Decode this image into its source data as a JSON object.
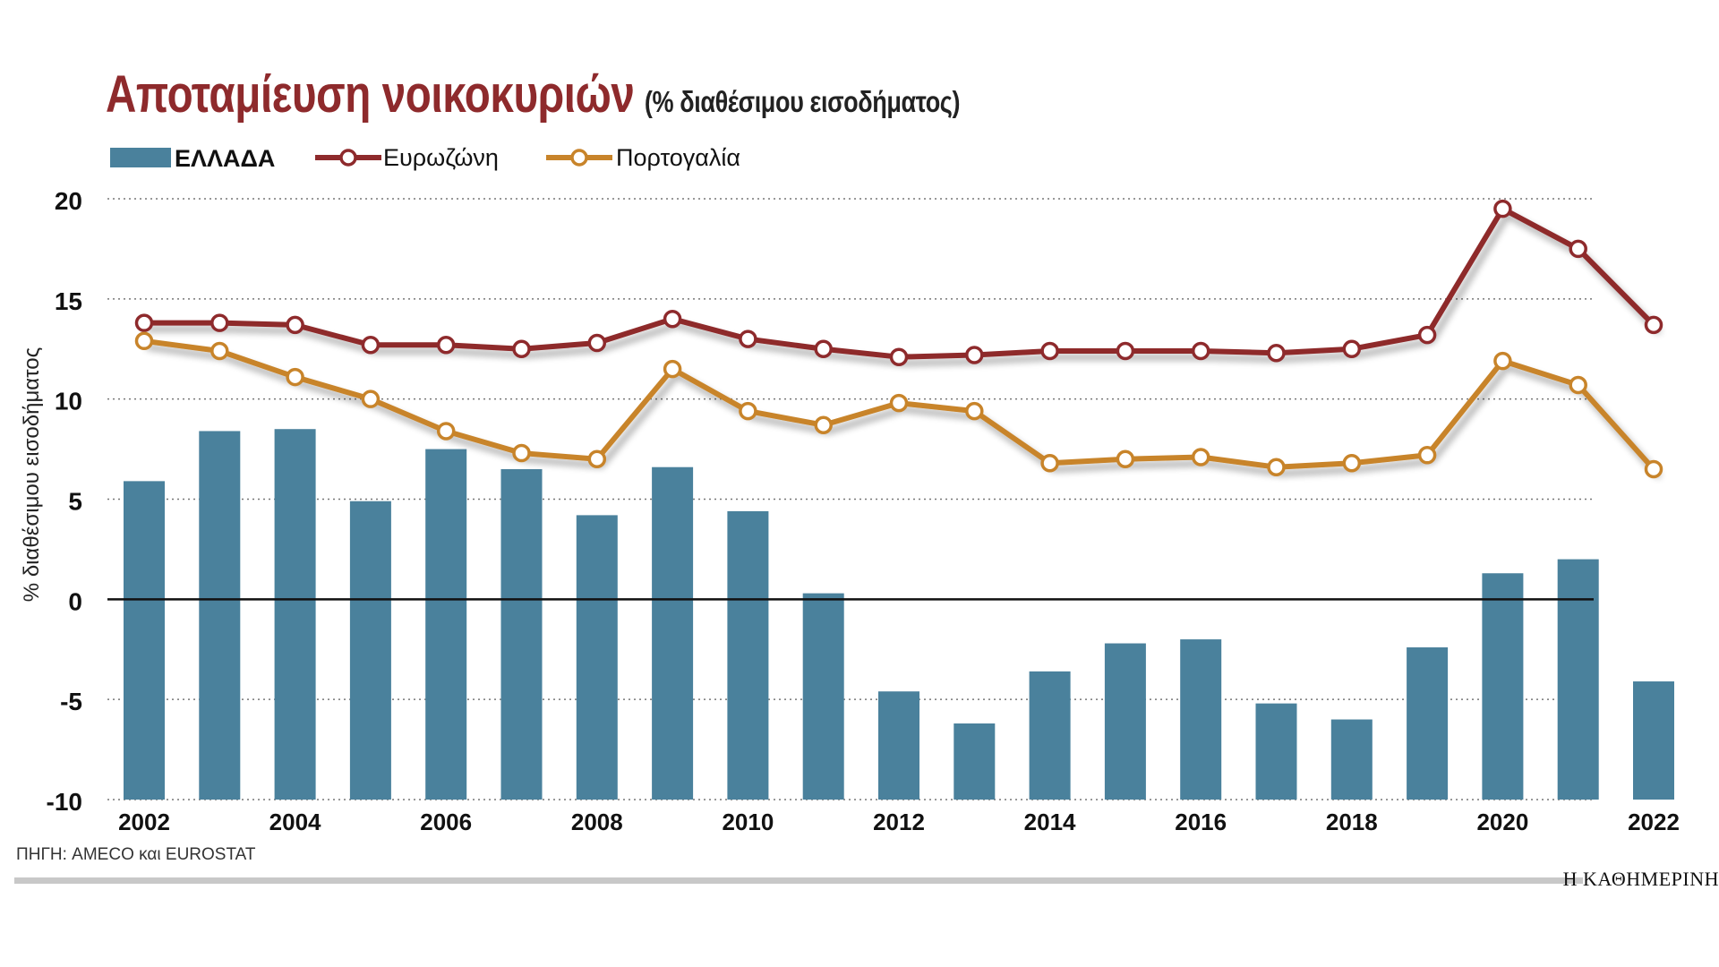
{
  "title": "Αποταμίευση νοικοκυριών",
  "subtitle": "(% διαθέσιμου εισοδήματος)",
  "source": "ΠΗΓΗ: AMECO και EUROSTAT",
  "publisher": "Η ΚΑΘΗΜΕΡΙΝΗ",
  "colors": {
    "bars": "#4a819c",
    "eurozone": "#8e2a2c",
    "portugal": "#c8842a",
    "title": "#8e2a2c"
  },
  "chart_data": {
    "type": "bar",
    "title": "Αποταμίευση νοικοκυριών",
    "ylabel": "% διαθέσιμου εισοδήματος",
    "xlabel": "",
    "ylim": [
      -10,
      20
    ],
    "yticks": [
      "20",
      "15",
      "10",
      "5",
      "0",
      "-5",
      "-10"
    ],
    "x": [
      2002,
      2003,
      2004,
      2005,
      2006,
      2007,
      2008,
      2009,
      2010,
      2011,
      2012,
      2013,
      2014,
      2015,
      2016,
      2017,
      2018,
      2019,
      2020,
      2021,
      2022
    ],
    "xtick_labels": [
      "2002",
      "2004",
      "2006",
      "2008",
      "2010",
      "2012",
      "2014",
      "2016",
      "2018",
      "2020",
      "2022"
    ],
    "legend": [
      "ΕΛΛΑΔΑ",
      "Ευρωζώνη",
      "Πορτογαλία"
    ],
    "series": [
      {
        "name": "ΕΛΛΑΔΑ",
        "kind": "bar",
        "values": [
          5.9,
          8.4,
          8.5,
          4.9,
          7.5,
          6.5,
          4.2,
          6.6,
          4.4,
          0.3,
          -4.6,
          -6.2,
          -3.6,
          -2.2,
          -2.0,
          -5.2,
          -6.0,
          -2.4,
          1.3,
          2.0,
          -4.1
        ]
      },
      {
        "name": "Ευρωζώνη",
        "kind": "line",
        "values": [
          13.8,
          13.8,
          13.7,
          12.7,
          12.7,
          12.5,
          12.8,
          14.0,
          13.0,
          12.5,
          12.1,
          12.2,
          12.4,
          12.4,
          12.4,
          12.3,
          12.5,
          13.2,
          19.5,
          17.5,
          13.7
        ]
      },
      {
        "name": "Πορτογαλία",
        "kind": "line",
        "values": [
          12.9,
          12.4,
          11.1,
          10.0,
          8.4,
          7.3,
          7.0,
          11.5,
          9.4,
          8.7,
          9.8,
          9.4,
          6.8,
          7.0,
          7.1,
          6.6,
          6.8,
          7.2,
          11.9,
          10.7,
          6.5
        ]
      }
    ]
  }
}
